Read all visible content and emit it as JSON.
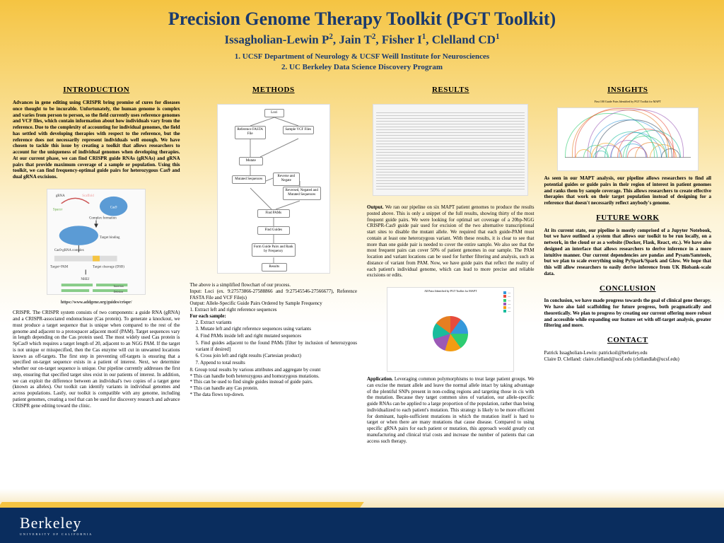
{
  "header": {
    "title": "Precision Genome Therapy Toolkit (PGT Toolkit)",
    "authors_prefix": "Issagholian-Lewin P",
    "auth_sup1": "2",
    "auth_p2": ", Jain T",
    "auth_sup2": "2",
    "auth_p3": ", Fisher I",
    "auth_sup3": "1",
    "auth_p4": ", Clelland CD",
    "auth_sup4": "1",
    "affil1": "1. UCSF Department of Neurology & UCSF Weill Institute for Neurosciences",
    "affil2": "2. UC Berkeley Data Science Discovery Program"
  },
  "intro": {
    "heading": "INTRODUCTION",
    "p1": "Advances in gene editing using CRISPR bring promise of cures for diseases once thought to be incurable. Unfortunately, the human genome is complex and varies from person to person, so the field currently uses reference genomes and VCF files, which contain information about how individuals vary from the reference. Due to the complexity of accounting for individual genomes, the field has settled with developing therapies with respect to the reference, but the reference does not necessarily represent individuals well enough. We have chosen to tackle this issue by creating a toolkit that allows researchers to account for the uniqueness of individual genomes when developing therapies. At our current phase, we can find CRISPR guide RNAs (gRNAs) and gRNA pairs that provide maximum coverage of a sample or population. Using this toolkit, we can find frequency-optimal guide pairs for heterozygous Cas9 and dual gRNA excisions.",
    "img_caption": "https://www.addgene.org/guides/crispr/",
    "crispr_labels": {
      "scaffold": "Scaffold",
      "spacer": "Spacer",
      "cas9": "Cas9",
      "complex": "Complex formation",
      "binding": "Target binding",
      "pam": "Target+PAM",
      "cleavage": "Target cleavage (DSB)",
      "nhej": "NHEJ",
      "insertion": "Insertion",
      "deletion": "Deletion",
      "grna": "gRNA",
      "cascomplex": "Cas9-gRNA complex"
    },
    "p2": "CRISPR. The CRISPR system consists of two components: a guide RNA (gRNA) and a CRISPR-associated endonuclease (Cas protein). To generate a knockout, we must produce a target sequence that is unique when compared to the rest of the genome and adjacent to a protospacer adjacent motif (PAM). Target sequences vary in length depending on the Cas protein used. The most widely used Cas protein is SpCas9 which requires a target length of 20, adjacent to an NGG PAM. If the target is not unique or misspecified, then the Cas enzyme will cut in unwanted locations known as off-targets. The first step in preventing off-targets is ensuring that a specified on-target sequence exists in a patient of interest. Next, we determine whether our on-target sequence is unique. Our pipeline currently addresses the first step, ensuring that specified target sites exist in our patients of interest. In addition, we can exploit the difference between an individual's two copies of a target gene (known as alleles). Our toolkit can identify variants in individual genomes and across populations. Lastly, our toolkit is compatible with any genome, including patient genomes, creating a tool that can be used for discovery research and advance CRISPR gene editing toward the clinic."
  },
  "methods": {
    "heading": "METHODS",
    "flow": {
      "loci": "Loci",
      "ref": "Reference FASTA File",
      "vcf": "Sample VCF Files",
      "mutate": "Mutate",
      "mutseq": "Mutated Sequences",
      "revneg": "Reverse and Negate",
      "revmut": "Reversed, Negated and Mutated Sequences",
      "findpam": "Find PAMs",
      "findguide": "Find Guides",
      "formpair": "Form Guide Pairs and Rank by Frequency",
      "results": "Results"
    },
    "intro_line": "The above is a simplified flowchart of our process.",
    "input_line": "Input: Loci (ex. 9:27573866-27588866 and 9:27545546-27566677), Reference FASTA File and VCF File(s)",
    "output_line": "Output: Allele-Specific Guide Pairs Ordered by Sample Frequency",
    "step1": "1. Extract left and right reference sequences",
    "each": "For each sample:",
    "step2": "2. Extract variants",
    "step3": "3. Mutate left and right reference sequences using variants",
    "step4": "4. Find PAMs inside left and right mutated sequences",
    "step5": "5. Find guides adjacent to the found PAMs [filter by inclusion of heterozygous variant if desired]",
    "step6": "6. Cross join left and right results (Cartesian product)",
    "step7": "7. Append to total results",
    "step8": "8. Group total results by various attributes and aggregate by count",
    "b1": "* This can handle both heterozygous and homozygous mutations.",
    "b2": "* This can be used to find single guides instead of guide pairs.",
    "b3": "* This can handle any Cas protein.",
    "b4": "* The data flows top-down."
  },
  "results": {
    "heading": "RESULTS",
    "output_lead": "Output. ",
    "output_p": "We ran our pipeline on six MAPT patient genomes to produce the results posted above. This is only a snippet of the full results, showing thirty of the most frequent guide pairs. We were looking for optimal set coverage of a 20bp-NGG CRISPR-Cas9 guide pair used for excision of the two alternative transcriptional start sites to disable the mutant allele. We required that each guide-PAM must contain at least one heterozygous variant. With these results, it is clear to see that more than one guide pair is needed to cover the entire sample. We also see that the most frequent pairs can cover 50% of patient genomes in our sample. The PAM location and variant locations can be used for further filtering and analysis, such as distance of variant from PAM. Now, we have guide pairs that reflect the reality of each patient's individual genome, which can lead to more precise and reliable excisions or edits.",
    "app_lead": "Application. ",
    "app_p": "Leveraging common polymorphisms to treat large patient groups. We can excise the mutant allele and leave the normal allele intact by taking advantage of the plentiful SNPs present in non-coding regions and targeting those in cis with the mutation. Because they target common sites of variation, our allele-specific guide RNAs can be applied to a large proportion of the population, rather than being individualized to each patient's mutation. This strategy is likely to be more efficient for dominant, haplo-sufficient mutations in which the mutation itself is hard to target or when there are many mutations that cause disease. Compared to using specific gRNA pairs for each patient or mutation, this approach would greatly cut manufacturing and clinical trial costs and increase the number of patients that can access such therapy."
  },
  "insights": {
    "heading": "INSIGHTS",
    "arc_title": "First 100 Guide Pairs Identified by PGT Toolkit for MAPT",
    "p": "As seen in our MAPT analysis, our pipeline allows researchers to find all potential guides or guide pairs in their region of interest in patient genomes and ranks them by sample coverage. This allows researchers to create effective therapies that work on their target population instead of designing for a reference that doesn't necessarily reflect anybody's genome."
  },
  "future": {
    "heading": "FUTURE WORK",
    "p": "At its current state, our pipeline is mostly comprised of a Jupyter Notebook, but we have outlined a system that allows our toolkit to be run locally, on a network, in the cloud or as a website (Docker, Flask, React, etc.). We have also designed an interface that allows researchers to derive inference in a more intuitive manner. Our current dependencies are pandas and Pysam/Samtools, but we plan to scale everything using PySpark/Spark and Glow. We hope that this will allow researchers to easily derive inference from UK Biobank-scale data."
  },
  "conclusion": {
    "heading": "CONCLUSION",
    "p": "In conclusion, we have made progress towards the goal of clinical gene therapy. We have also laid scaffolding for future progress, both pragmatically and theoretically. We plan to progress by creating our current offering more robust and accessible while expanding our feature set with off-target analysis, greater filtering and more."
  },
  "contact": {
    "heading": "CONTACT",
    "l1": "Patrick Issagholian-Lewin: patrickoil@berkeley.edu",
    "l2": "Claire D. Clelland: claire.clelland@ucsf.edu (clellandlab@ucsf.edu)"
  },
  "footer": {
    "logo_big": "Berkeley",
    "logo_small": "UNIVERSITY OF CALIFORNIA"
  },
  "arcs": {
    "colors": [
      "#3498db",
      "#e74c3c",
      "#2ecc71",
      "#9b59b6",
      "#f39c12",
      "#1abc9c",
      "#34495e",
      "#e67e22"
    ]
  },
  "sun_title": "All Pairs Identified by PGT Toolkit for MAPT"
}
